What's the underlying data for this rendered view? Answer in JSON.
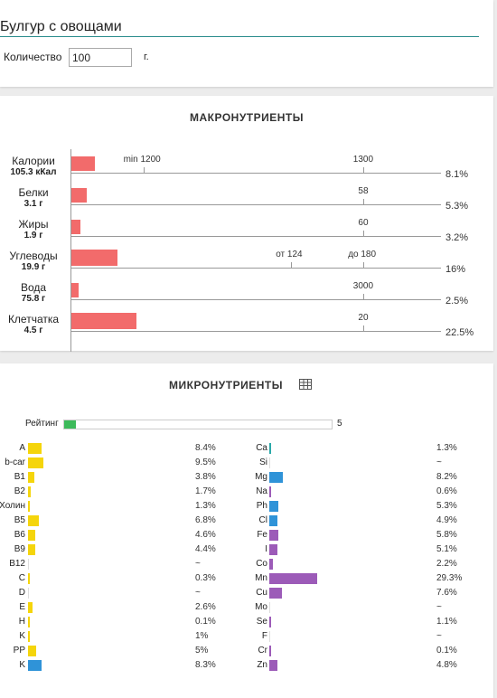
{
  "colors": {
    "accent_line": "#2a8d8d",
    "macro_bar": "#f26b6b",
    "rating_fill": "#3cba5a",
    "vitamin": "#f5d50b",
    "vitamin_high": "#2f93d8",
    "mineral": "#9c5bb8",
    "mineral_alt": "#2f93d8",
    "mineral_teal": "#2aa9a9"
  },
  "product": {
    "title": "Булгур с овощами",
    "qty_label": "Количество",
    "qty_value": "100",
    "qty_unit": "г."
  },
  "macro": {
    "heading": "МАКРОНУТРИЕНТЫ",
    "rows": [
      {
        "name": "Калории",
        "value": "105.3 кКал",
        "pct": "8.1%",
        "fill": 0.081,
        "ticks": [
          {
            "label": "min 1200"
          },
          {
            "label": "1300"
          }
        ]
      },
      {
        "name": "Белки",
        "value": "3.1 г",
        "pct": "5.3%",
        "fill": 0.053,
        "ticks": [
          {
            "label": "58"
          }
        ]
      },
      {
        "name": "Жиры",
        "value": "1.9 г",
        "pct": "3.2%",
        "fill": 0.032,
        "ticks": [
          {
            "label": "60"
          }
        ]
      },
      {
        "name": "Углеводы",
        "value": "19.9 г",
        "pct": "16%",
        "fill": 0.16,
        "ticks": [
          {
            "label": "от 124"
          },
          {
            "label": "до 180"
          }
        ]
      },
      {
        "name": "Вода",
        "value": "75.8 г",
        "pct": "2.5%",
        "fill": 0.025,
        "ticks": [
          {
            "label": "3000"
          }
        ]
      },
      {
        "name": "Клетчатка",
        "value": "4.5 г",
        "pct": "22.5%",
        "fill": 0.225,
        "ticks": [
          {
            "label": "20"
          }
        ]
      }
    ]
  },
  "micro": {
    "heading": "МИКРОНУТРИЕНТЫ",
    "table_icon": "table-grid-icon",
    "rating_label": "Рейтинг",
    "rating_value": "5",
    "rating_fill": 0.045,
    "left": [
      {
        "name": "A",
        "pct": "8.4%",
        "fill": 0.084,
        "color": "vitamin"
      },
      {
        "name": "b-car",
        "pct": "9.5%",
        "fill": 0.095,
        "color": "vitamin"
      },
      {
        "name": "B1",
        "pct": "3.8%",
        "fill": 0.038,
        "color": "vitamin"
      },
      {
        "name": "B2",
        "pct": "1.7%",
        "fill": 0.017,
        "color": "vitamin"
      },
      {
        "name": "Холин",
        "pct": "1.3%",
        "fill": 0.013,
        "color": "vitamin"
      },
      {
        "name": "B5",
        "pct": "6.8%",
        "fill": 0.068,
        "color": "vitamin"
      },
      {
        "name": "B6",
        "pct": "4.6%",
        "fill": 0.046,
        "color": "vitamin"
      },
      {
        "name": "B9",
        "pct": "4.4%",
        "fill": 0.044,
        "color": "vitamin"
      },
      {
        "name": "B12",
        "pct": "~",
        "fill": 0,
        "color": "vitamin"
      },
      {
        "name": "C",
        "pct": "0.3%",
        "fill": 0.003,
        "color": "vitamin"
      },
      {
        "name": "D",
        "pct": "~",
        "fill": 0,
        "color": "vitamin"
      },
      {
        "name": "E",
        "pct": "2.6%",
        "fill": 0.026,
        "color": "vitamin"
      },
      {
        "name": "H",
        "pct": "0.1%",
        "fill": 0.001,
        "color": "vitamin"
      },
      {
        "name": "K",
        "pct": "1%",
        "fill": 0.01,
        "color": "vitamin"
      },
      {
        "name": "PP",
        "pct": "5%",
        "fill": 0.05,
        "color": "vitamin"
      },
      {
        "name": "K",
        "pct": "8.3%",
        "fill": 0.083,
        "color": "vitamin_high"
      }
    ],
    "right": [
      {
        "name": "Ca",
        "pct": "1.3%",
        "fill": 0.013,
        "color": "mineral_teal"
      },
      {
        "name": "Si",
        "pct": "~",
        "fill": 0,
        "color": "mineral"
      },
      {
        "name": "Mg",
        "pct": "8.2%",
        "fill": 0.082,
        "color": "mineral_alt"
      },
      {
        "name": "Na",
        "pct": "0.6%",
        "fill": 0.006,
        "color": "mineral"
      },
      {
        "name": "Ph",
        "pct": "5.3%",
        "fill": 0.053,
        "color": "mineral_alt"
      },
      {
        "name": "Cl",
        "pct": "4.9%",
        "fill": 0.049,
        "color": "mineral_alt"
      },
      {
        "name": "Fe",
        "pct": "5.8%",
        "fill": 0.058,
        "color": "mineral"
      },
      {
        "name": "I",
        "pct": "5.1%",
        "fill": 0.051,
        "color": "mineral"
      },
      {
        "name": "Co",
        "pct": "2.2%",
        "fill": 0.022,
        "color": "mineral"
      },
      {
        "name": "Mn",
        "pct": "29.3%",
        "fill": 0.293,
        "color": "mineral"
      },
      {
        "name": "Cu",
        "pct": "7.6%",
        "fill": 0.076,
        "color": "mineral"
      },
      {
        "name": "Mo",
        "pct": "~",
        "fill": 0,
        "color": "mineral"
      },
      {
        "name": "Se",
        "pct": "1.1%",
        "fill": 0.011,
        "color": "mineral"
      },
      {
        "name": "F",
        "pct": "~",
        "fill": 0,
        "color": "mineral"
      },
      {
        "name": "Cr",
        "pct": "0.1%",
        "fill": 0.001,
        "color": "mineral"
      },
      {
        "name": "Zn",
        "pct": "4.8%",
        "fill": 0.048,
        "color": "mineral"
      }
    ]
  }
}
